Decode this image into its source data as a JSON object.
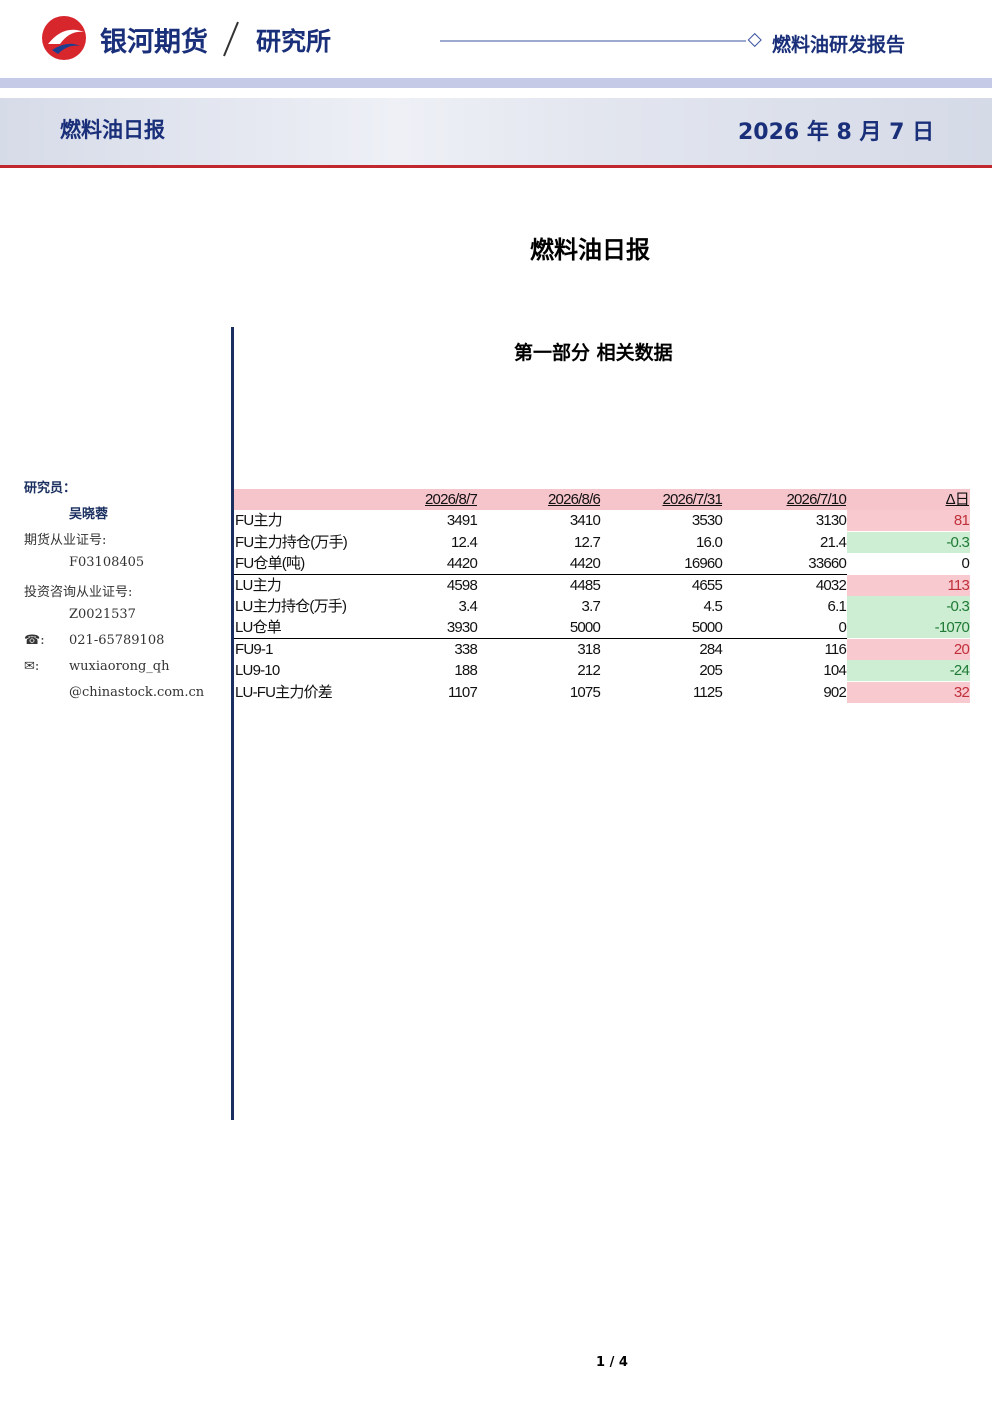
{
  "header": {
    "brand": "银河期货",
    "department": "研究所",
    "report_type": "燃料油研发报告"
  },
  "banner": {
    "title": "燃料油日报",
    "date": "2026 年 8 月 7 日"
  },
  "document": {
    "title": "燃料油日报",
    "section": "第一部分 相关数据"
  },
  "sidebar": {
    "researcher_label": "研究员：",
    "researcher": "吴晓蓉",
    "futures_license_label": "期货从业证号:",
    "futures_license": "F03108405",
    "advisory_license_label": "投资咨询从业证号:",
    "advisory_license": "Z0021537",
    "phone_icon": "☎:",
    "phone": "021-65789108",
    "email_icon": "✉:",
    "email_user": "wuxiaorong_qh",
    "email_domain": "@chinastock.com.cn"
  },
  "table": {
    "columns": [
      "2026/8/7",
      "2026/8/6",
      "2026/7/31",
      "2026/7/10",
      "Δ日"
    ],
    "rows": [
      {
        "label": "FU主力",
        "values": [
          "3491",
          "3410",
          "3530",
          "3130",
          "81"
        ]
      },
      {
        "label": "FU主力持仓(万手)",
        "values": [
          "12.4",
          "12.7",
          "16.0",
          "21.4",
          "-0.3"
        ]
      },
      {
        "label": "FU仓单(吨)",
        "values": [
          "4420",
          "4420",
          "16960",
          "33660",
          "0"
        ]
      },
      {
        "label": "LU主力",
        "values": [
          "4598",
          "4485",
          "4655",
          "4032",
          "113"
        ]
      },
      {
        "label": "LU主力持仓(万手)",
        "values": [
          "3.4",
          "3.7",
          "4.5",
          "6.1",
          "-0.3"
        ]
      },
      {
        "label": "LU仓单",
        "values": [
          "3930",
          "5000",
          "5000",
          "0",
          "-1070"
        ]
      },
      {
        "label": "FU9-1",
        "values": [
          "338",
          "318",
          "284",
          "116",
          "20"
        ]
      },
      {
        "label": "LU9-10",
        "values": [
          "188",
          "212",
          "205",
          "104",
          "-24"
        ]
      },
      {
        "label": "LU-FU主力价差",
        "values": [
          "1107",
          "1075",
          "1125",
          "902",
          "32"
        ]
      }
    ]
  },
  "footer": {
    "page": "1 / 4"
  }
}
